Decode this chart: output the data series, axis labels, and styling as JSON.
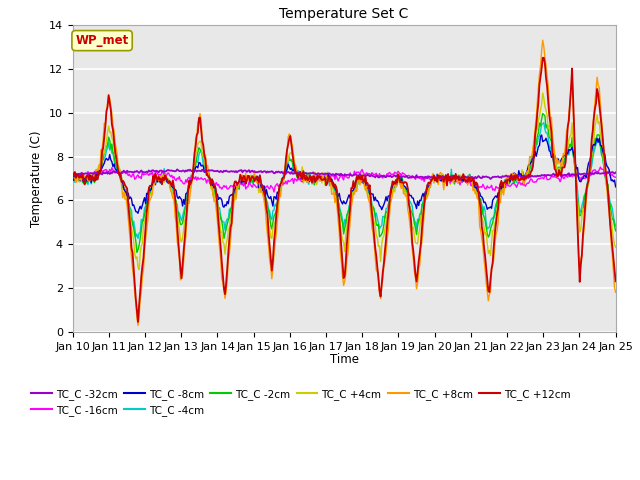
{
  "title": "Temperature Set C",
  "xlabel": "Time",
  "ylabel": "Temperature (C)",
  "ylim": [
    0,
    14
  ],
  "xlim": [
    0,
    15
  ],
  "x_tick_labels": [
    "Jan 10",
    "Jan 11",
    "Jan 12",
    "Jan 13",
    "Jan 14",
    "Jan 15",
    "Jan 16",
    "Jan 17",
    "Jan 18",
    "Jan 19",
    "Jan 20",
    "Jan 21",
    "Jan 22",
    "Jan 23",
    "Jan 24",
    "Jan 25"
  ],
  "wp_met_label": "WP_met",
  "wp_met_color": "#cc0000",
  "wp_met_bg": "#ffffcc",
  "wp_met_edge": "#999900",
  "background_color": "#ffffff",
  "plot_bg_color": "#e8e8e8",
  "grid_color": "#ffffff",
  "series": [
    {
      "label": "TC_C -32cm",
      "color": "#9900cc"
    },
    {
      "label": "TC_C -16cm",
      "color": "#ff00ff"
    },
    {
      "label": "TC_C -8cm",
      "color": "#0000cc"
    },
    {
      "label": "TC_C -4cm",
      "color": "#00cccc"
    },
    {
      "label": "TC_C -2cm",
      "color": "#00cc00"
    },
    {
      "label": "TC_C +4cm",
      "color": "#cccc00"
    },
    {
      "label": "TC_C +8cm",
      "color": "#ff9900"
    },
    {
      "label": "TC_C +12cm",
      "color": "#cc0000"
    }
  ]
}
